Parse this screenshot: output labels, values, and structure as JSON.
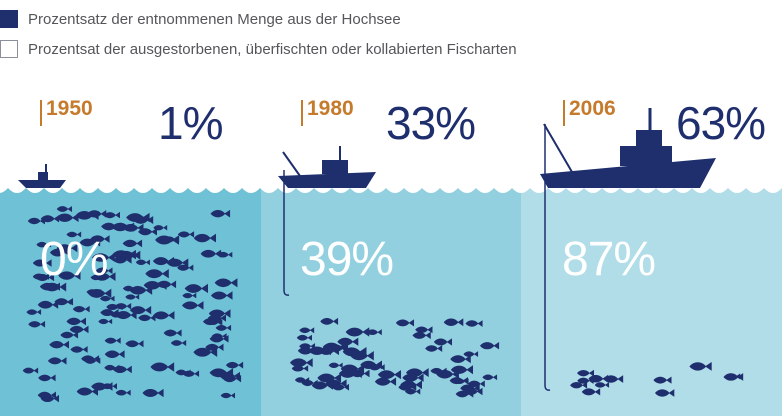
{
  "legend": {
    "catch_label": "Prozentsatz der entnommenen Menge aus der Hochsee",
    "collapsed_label": "Prozentsat der ausgestorbenen, überfischten oder kollabierten Fischarten"
  },
  "periods": [
    {
      "year": "1950",
      "catch_percent": "1%",
      "collapsed_percent": "0%",
      "catch_value": 1,
      "collapsed_value": 0
    },
    {
      "year": "1980",
      "catch_percent": "33%",
      "collapsed_percent": "39%",
      "catch_value": 33,
      "collapsed_value": 39
    },
    {
      "year": "2006",
      "catch_percent": "63%",
      "collapsed_percent": "87%",
      "catch_value": 63,
      "collapsed_value": 87
    }
  ],
  "colors": {
    "navy": "#1f2f6e",
    "orange": "#c57a2c",
    "water_1950": "#6fc2d5",
    "water_1980": "#93d0df",
    "water_2006": "#b1dde8",
    "legend_text": "#54565a"
  },
  "icons": [
    "fishing-boat-icon",
    "trawler-icon",
    "factory-ship-icon",
    "fish-icon",
    "fishing-hook-icon"
  ]
}
